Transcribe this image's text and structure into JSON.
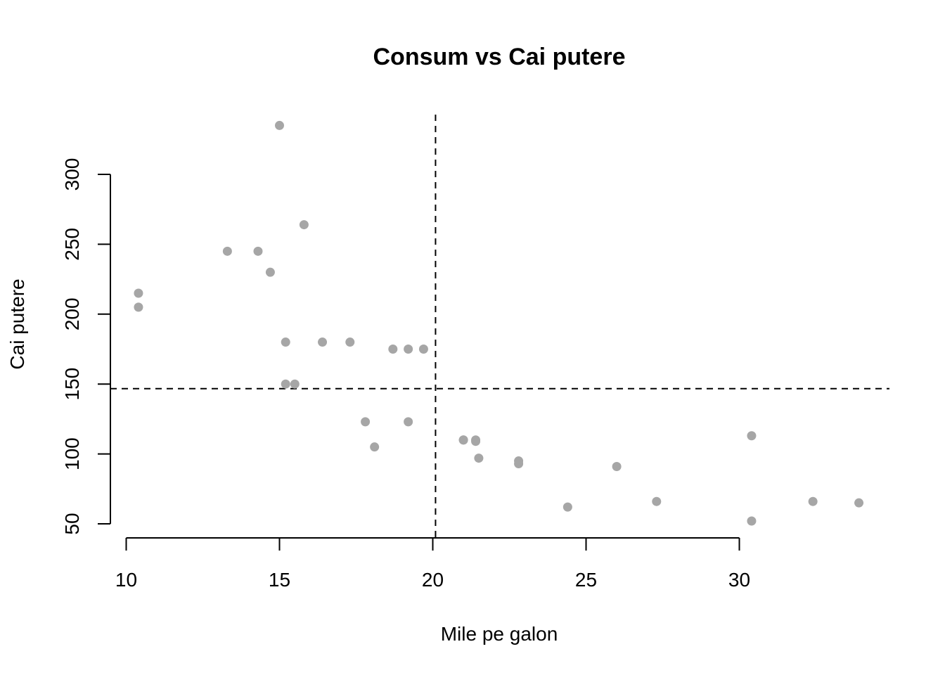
{
  "chart_data": {
    "type": "scatter",
    "title": "Consum vs Cai putere",
    "xlabel": "Mile pe galon",
    "ylabel": "Cai putere",
    "xlim": [
      10.4,
      33.9
    ],
    "ylim": [
      52,
      335
    ],
    "x_ticks": [
      10,
      15,
      20,
      25,
      30
    ],
    "y_ticks": [
      50,
      100,
      150,
      200,
      250,
      300
    ],
    "grid": false,
    "point_color": "#a6a6a6",
    "reference_lines": {
      "vertical_x": 20.09,
      "horizontal_y": 146.7
    },
    "points": [
      {
        "x": 21.0,
        "y": 110
      },
      {
        "x": 21.0,
        "y": 110
      },
      {
        "x": 22.8,
        "y": 93
      },
      {
        "x": 21.4,
        "y": 110
      },
      {
        "x": 18.7,
        "y": 175
      },
      {
        "x": 18.1,
        "y": 105
      },
      {
        "x": 14.3,
        "y": 245
      },
      {
        "x": 24.4,
        "y": 62
      },
      {
        "x": 22.8,
        "y": 95
      },
      {
        "x": 19.2,
        "y": 123
      },
      {
        "x": 17.8,
        "y": 123
      },
      {
        "x": 16.4,
        "y": 180
      },
      {
        "x": 17.3,
        "y": 180
      },
      {
        "x": 15.2,
        "y": 180
      },
      {
        "x": 10.4,
        "y": 205
      },
      {
        "x": 10.4,
        "y": 215
      },
      {
        "x": 14.7,
        "y": 230
      },
      {
        "x": 32.4,
        "y": 66
      },
      {
        "x": 30.4,
        "y": 52
      },
      {
        "x": 33.9,
        "y": 65
      },
      {
        "x": 21.5,
        "y": 97
      },
      {
        "x": 15.5,
        "y": 150
      },
      {
        "x": 15.2,
        "y": 150
      },
      {
        "x": 13.3,
        "y": 245
      },
      {
        "x": 19.2,
        "y": 175
      },
      {
        "x": 27.3,
        "y": 66
      },
      {
        "x": 26.0,
        "y": 91
      },
      {
        "x": 30.4,
        "y": 113
      },
      {
        "x": 15.8,
        "y": 264
      },
      {
        "x": 19.7,
        "y": 175
      },
      {
        "x": 15.0,
        "y": 335
      },
      {
        "x": 21.4,
        "y": 109
      }
    ]
  }
}
